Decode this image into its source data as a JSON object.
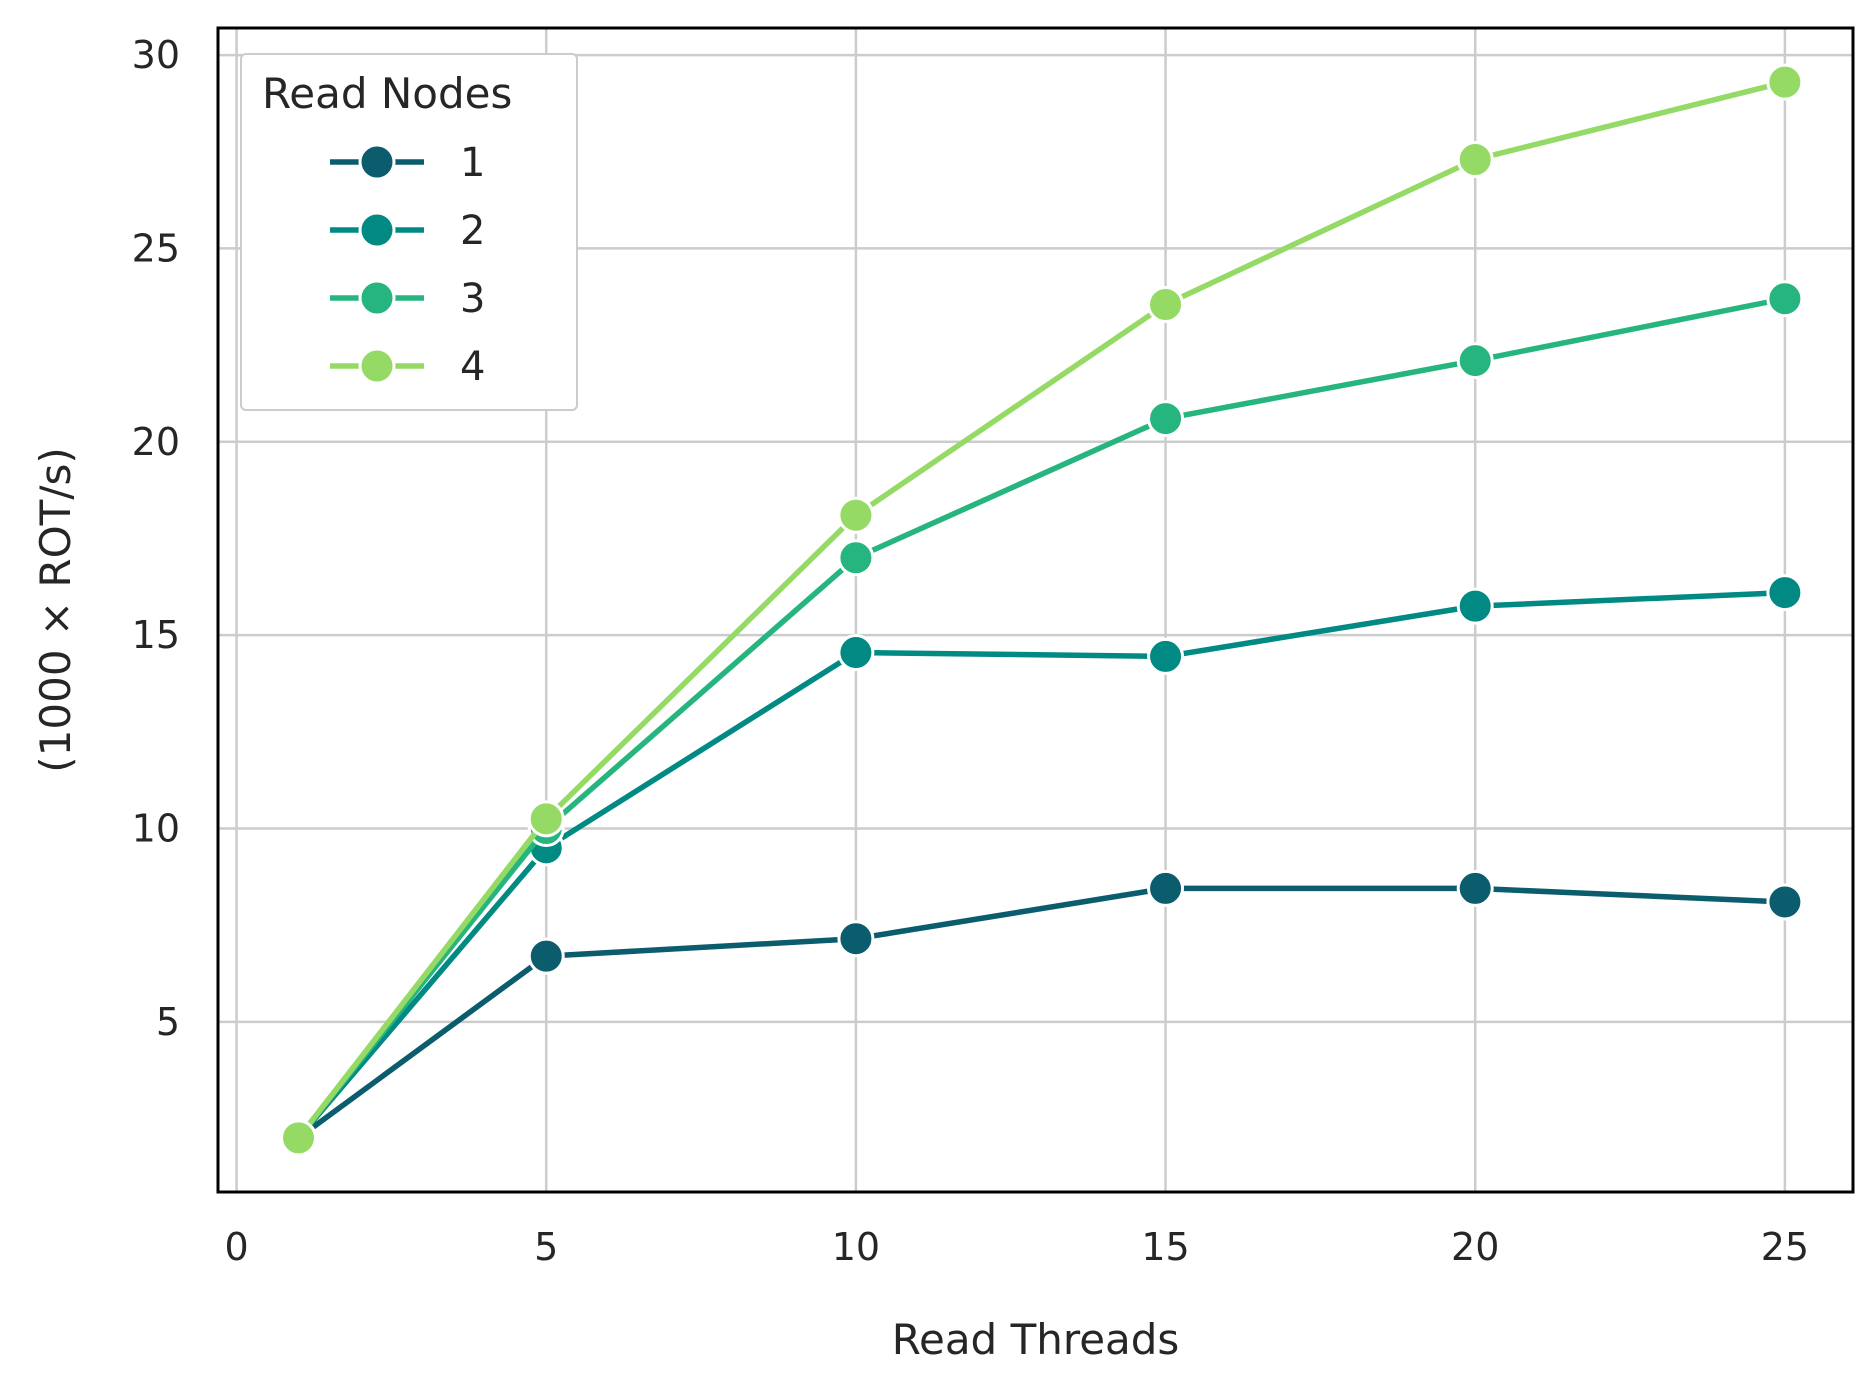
{
  "chart_data": {
    "type": "line",
    "title": "",
    "xlabel": "Read Threads",
    "ylabel": "(1000 × ROT/s)",
    "x": [
      1,
      5,
      10,
      15,
      20,
      25
    ],
    "xlim": [
      -0.3,
      26.1
    ],
    "ylim": [
      0.6,
      30.7
    ],
    "xticks": [
      0,
      5,
      10,
      15,
      20,
      25
    ],
    "yticks": [
      5,
      10,
      15,
      20,
      25,
      30
    ],
    "grid": true,
    "legend": {
      "title": "Read Nodes",
      "position": "top-left"
    },
    "series": [
      {
        "name": "1",
        "color": "#0b5c6d",
        "values": [
          2.0,
          6.7,
          7.15,
          8.45,
          8.45,
          8.1
        ]
      },
      {
        "name": "2",
        "color": "#008a83",
        "values": [
          2.0,
          9.5,
          14.55,
          14.45,
          15.75,
          16.1
        ]
      },
      {
        "name": "3",
        "color": "#26b57e",
        "values": [
          2.0,
          10.0,
          17.0,
          20.6,
          22.1,
          23.7
        ]
      },
      {
        "name": "4",
        "color": "#95da65",
        "values": [
          2.0,
          10.25,
          18.1,
          23.55,
          27.3,
          29.3
        ]
      }
    ]
  }
}
